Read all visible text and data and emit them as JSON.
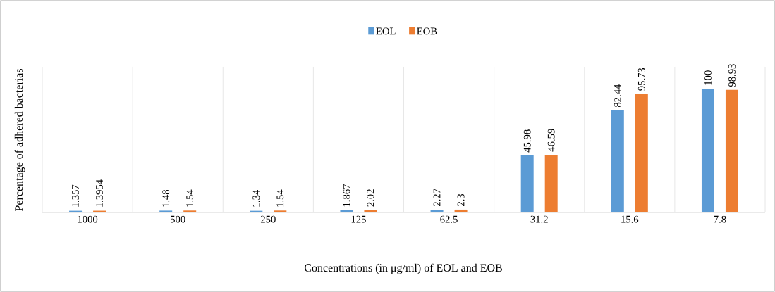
{
  "chart_data": {
    "type": "bar",
    "xlabel": "Concentrations (in μg/ml) of EOL and EOB",
    "ylabel": "Percentage of adhered bacterias",
    "categories": [
      "1000",
      "500",
      "250",
      "125",
      "62.5",
      "31.2",
      "15.6",
      "7.8"
    ],
    "series": [
      {
        "name": "EOL",
        "color": "#5b9bd5",
        "values": [
          1.357,
          1.48,
          1.34,
          1.867,
          2.27,
          45.98,
          82.44,
          100
        ],
        "value_labels": [
          "1.357",
          "1.48",
          "1.34",
          "1.867",
          "2.27",
          "45.98",
          "82.44",
          "100"
        ]
      },
      {
        "name": "EOB",
        "color": "#ed7d31",
        "values": [
          1.3954,
          1.54,
          1.54,
          2.02,
          2.3,
          46.59,
          95.73,
          98.93
        ],
        "value_labels": [
          "1.3954",
          "1.54",
          "1.54",
          "2.02",
          "2.3",
          "46.59",
          "95.73",
          "98.93"
        ]
      }
    ],
    "legend": "top",
    "grid": "x",
    "tick_labels": "x"
  }
}
